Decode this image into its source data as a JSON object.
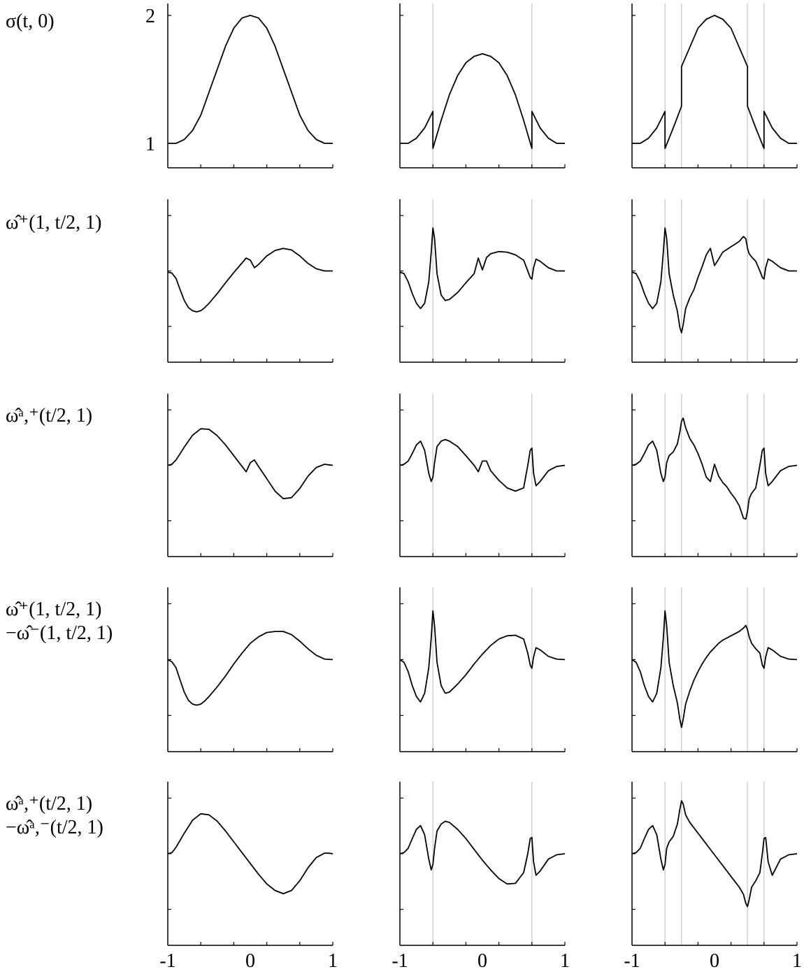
{
  "rows": [
    {
      "label_lines": [
        "σ(t, 0)"
      ]
    },
    {
      "label_lines": [
        "ω̂⁺(1, t/2, 1)"
      ]
    },
    {
      "label_lines": [
        "ω̂ᵃ,⁺(t/2, 1)"
      ]
    },
    {
      "label_lines": [
        "ω̂⁺(1, t/2, 1)",
        "−ω̂⁻(1, t/2, 1)"
      ]
    },
    {
      "label_lines": [
        "ω̂ᵃ,⁺(t/2, 1)",
        "−ω̂ᵃ,⁻(t/2, 1)"
      ]
    }
  ],
  "chart_data": {
    "type": "line",
    "layout": "grid",
    "grid_rows": 5,
    "grid_cols": 3,
    "xlim": [
      -1,
      1
    ],
    "x_tick_labels": [
      "-1",
      "0",
      "1"
    ],
    "row0_y_tick_labels": [
      "2",
      "1"
    ],
    "row0_ylim": [
      0.8,
      2.1
    ],
    "line_color": "#000000",
    "divider_color": "#d0d0d0",
    "columns": [
      {
        "vertical_lines_x": []
      },
      {
        "vertical_lines_x": [
          -0.6,
          0.6
        ]
      },
      {
        "vertical_lines_x": [
          -0.6,
          -0.4,
          0.4,
          0.6
        ]
      }
    ],
    "panels": [
      [
        {
          "x": [
            -1,
            -0.9,
            -0.8,
            -0.7,
            -0.6,
            -0.5,
            -0.4,
            -0.3,
            -0.2,
            -0.1,
            0,
            0.1,
            0.2,
            0.3,
            0.4,
            0.5,
            0.6,
            0.7,
            0.8,
            0.9,
            1
          ],
          "y": [
            1,
            1,
            1.03,
            1.1,
            1.22,
            1.4,
            1.58,
            1.76,
            1.9,
            1.98,
            2,
            1.98,
            1.9,
            1.76,
            1.58,
            1.4,
            1.22,
            1.1,
            1.03,
            1,
            1
          ]
        },
        {
          "x": [
            -1,
            -0.9,
            -0.8,
            -0.7,
            -0.6,
            -0.6,
            -0.5,
            -0.4,
            -0.3,
            -0.2,
            -0.1,
            0,
            0.1,
            0.2,
            0.3,
            0.4,
            0.5,
            0.6,
            0.6,
            0.7,
            0.8,
            0.9,
            1
          ],
          "y": [
            1,
            1,
            1.04,
            1.12,
            1.25,
            0.96,
            1.18,
            1.38,
            1.53,
            1.63,
            1.68,
            1.7,
            1.68,
            1.63,
            1.53,
            1.38,
            1.18,
            0.96,
            1.25,
            1.12,
            1.04,
            1,
            1
          ]
        },
        {
          "x": [
            -1,
            -0.9,
            -0.8,
            -0.7,
            -0.6,
            -0.6,
            -0.5,
            -0.4,
            -0.4,
            -0.3,
            -0.2,
            -0.1,
            0,
            0.1,
            0.2,
            0.3,
            0.4,
            0.4,
            0.5,
            0.6,
            0.6,
            0.7,
            0.8,
            0.9,
            1
          ],
          "y": [
            1,
            1,
            1.04,
            1.12,
            1.25,
            0.96,
            1.12,
            1.29,
            1.6,
            1.75,
            1.9,
            1.97,
            2,
            1.97,
            1.9,
            1.75,
            1.6,
            1.29,
            1.12,
            0.96,
            1.25,
            1.12,
            1.04,
            1,
            1
          ]
        }
      ],
      [
        {
          "x": [
            -1,
            -0.95,
            -0.9,
            -0.85,
            -0.8,
            -0.75,
            -0.7,
            -0.65,
            -0.6,
            -0.55,
            -0.5,
            -0.4,
            -0.3,
            -0.2,
            -0.1,
            -0.05,
            0,
            0.05,
            0.1,
            0.2,
            0.3,
            0.4,
            0.5,
            0.6,
            0.7,
            0.8,
            0.9,
            1
          ],
          "y": [
            -0.02,
            -0.04,
            -0.14,
            -0.35,
            -0.55,
            -0.68,
            -0.74,
            -0.76,
            -0.74,
            -0.68,
            -0.6,
            -0.42,
            -0.22,
            -0.03,
            0.15,
            0.24,
            0.2,
            0.06,
            0.12,
            0.28,
            0.38,
            0.42,
            0.39,
            0.28,
            0.14,
            0.04,
            0,
            0
          ]
        },
        {
          "x": [
            -1,
            -0.95,
            -0.9,
            -0.85,
            -0.8,
            -0.75,
            -0.7,
            -0.65,
            -0.62,
            -0.6,
            -0.58,
            -0.55,
            -0.5,
            -0.45,
            -0.4,
            -0.3,
            -0.2,
            -0.1,
            -0.05,
            0,
            0.05,
            0.1,
            0.2,
            0.3,
            0.4,
            0.5,
            0.55,
            0.58,
            0.6,
            0.62,
            0.65,
            0.7,
            0.8,
            0.9,
            1
          ],
          "y": [
            -0.02,
            -0.05,
            -0.2,
            -0.42,
            -0.6,
            -0.7,
            -0.6,
            -0.2,
            0.35,
            0.8,
            0.6,
            -0.05,
            -0.45,
            -0.55,
            -0.53,
            -0.4,
            -0.22,
            -0.05,
            0.24,
            0.02,
            0.25,
            0.32,
            0.36,
            0.35,
            0.3,
            0.2,
            0.0,
            -0.12,
            -0.15,
            0.06,
            0.22,
            0.18,
            0.06,
            0,
            0
          ]
        },
        {
          "x": [
            -1,
            -0.95,
            -0.9,
            -0.85,
            -0.8,
            -0.75,
            -0.7,
            -0.65,
            -0.62,
            -0.6,
            -0.58,
            -0.55,
            -0.5,
            -0.45,
            -0.42,
            -0.4,
            -0.38,
            -0.35,
            -0.3,
            -0.25,
            -0.2,
            -0.15,
            -0.1,
            -0.05,
            0,
            0.05,
            0.1,
            0.15,
            0.2,
            0.25,
            0.3,
            0.35,
            0.38,
            0.4,
            0.42,
            0.45,
            0.5,
            0.55,
            0.58,
            0.6,
            0.62,
            0.65,
            0.7,
            0.8,
            0.9,
            1
          ],
          "y": [
            -0.02,
            -0.05,
            -0.2,
            -0.42,
            -0.6,
            -0.7,
            -0.6,
            -0.2,
            0.35,
            0.8,
            0.6,
            -0.05,
            -0.45,
            -0.75,
            -1.05,
            -1.15,
            -1.0,
            -0.7,
            -0.5,
            -0.35,
            -0.12,
            0.08,
            0.3,
            0.42,
            0.1,
            0.22,
            0.35,
            0.4,
            0.45,
            0.5,
            0.55,
            0.64,
            0.6,
            0.42,
            0.32,
            0.26,
            0.18,
            0.0,
            -0.12,
            -0.15,
            0.06,
            0.22,
            0.18,
            0.06,
            0,
            0
          ]
        }
      ],
      [
        {
          "x": [
            -1,
            -0.95,
            -0.9,
            -0.8,
            -0.7,
            -0.6,
            -0.5,
            -0.4,
            -0.3,
            -0.2,
            -0.1,
            -0.05,
            0,
            0.05,
            0.1,
            0.2,
            0.3,
            0.4,
            0.5,
            0.6,
            0.7,
            0.8,
            0.9,
            0.95,
            1
          ],
          "y": [
            0,
            0.02,
            0.1,
            0.34,
            0.56,
            0.68,
            0.67,
            0.55,
            0.38,
            0.18,
            -0.02,
            -0.12,
            0.05,
            0.1,
            -0.02,
            -0.25,
            -0.48,
            -0.62,
            -0.6,
            -0.43,
            -0.2,
            -0.04,
            0.02,
            0.01,
            0
          ]
        },
        {
          "x": [
            -1,
            -0.95,
            -0.9,
            -0.85,
            -0.8,
            -0.75,
            -0.7,
            -0.65,
            -0.62,
            -0.6,
            -0.58,
            -0.55,
            -0.5,
            -0.45,
            -0.4,
            -0.3,
            -0.2,
            -0.1,
            -0.05,
            0,
            0.05,
            0.1,
            0.2,
            0.3,
            0.4,
            0.5,
            0.55,
            0.58,
            0.6,
            0.62,
            0.65,
            0.7,
            0.8,
            0.9,
            1
          ],
          "y": [
            0,
            0.02,
            0.08,
            0.22,
            0.38,
            0.45,
            0.28,
            -0.15,
            -0.3,
            -0.22,
            0.05,
            0.35,
            0.45,
            0.48,
            0.45,
            0.35,
            0.18,
            0.0,
            -0.12,
            0.08,
            0.08,
            -0.1,
            -0.28,
            -0.42,
            -0.48,
            -0.42,
            0.0,
            0.28,
            0.32,
            -0.15,
            -0.38,
            -0.3,
            -0.1,
            -0.02,
            0
          ]
        },
        {
          "x": [
            -1,
            -0.95,
            -0.9,
            -0.85,
            -0.8,
            -0.75,
            -0.7,
            -0.65,
            -0.62,
            -0.6,
            -0.58,
            -0.55,
            -0.5,
            -0.45,
            -0.42,
            -0.4,
            -0.38,
            -0.35,
            -0.3,
            -0.25,
            -0.2,
            -0.15,
            -0.1,
            -0.05,
            0,
            0.05,
            0.1,
            0.15,
            0.2,
            0.25,
            0.3,
            0.35,
            0.38,
            0.4,
            0.42,
            0.45,
            0.5,
            0.55,
            0.58,
            0.6,
            0.62,
            0.65,
            0.7,
            0.8,
            0.9,
            1
          ],
          "y": [
            0,
            0.02,
            0.08,
            0.22,
            0.38,
            0.45,
            0.28,
            -0.15,
            -0.3,
            -0.22,
            0.05,
            0.18,
            0.25,
            0.4,
            0.62,
            0.82,
            0.88,
            0.7,
            0.5,
            0.38,
            0.22,
            0.02,
            -0.22,
            -0.3,
            0.02,
            -0.2,
            -0.32,
            -0.4,
            -0.52,
            -0.62,
            -0.75,
            -0.98,
            -1.0,
            -0.85,
            -0.62,
            -0.52,
            -0.42,
            0.0,
            0.28,
            0.32,
            -0.15,
            -0.38,
            -0.3,
            -0.1,
            -0.02,
            0
          ]
        }
      ],
      [
        {
          "x": [
            -1,
            -0.95,
            -0.9,
            -0.85,
            -0.8,
            -0.75,
            -0.7,
            -0.65,
            -0.6,
            -0.55,
            -0.5,
            -0.4,
            -0.3,
            -0.2,
            -0.1,
            0,
            0.1,
            0.2,
            0.3,
            0.4,
            0.5,
            0.6,
            0.7,
            0.8,
            0.9,
            1
          ],
          "y": [
            0,
            -0.04,
            -0.15,
            -0.38,
            -0.6,
            -0.75,
            -0.82,
            -0.84,
            -0.82,
            -0.76,
            -0.68,
            -0.5,
            -0.3,
            -0.08,
            0.12,
            0.3,
            0.42,
            0.5,
            0.52,
            0.52,
            0.46,
            0.34,
            0.2,
            0.08,
            0.01,
            0
          ]
        },
        {
          "x": [
            -1,
            -0.95,
            -0.9,
            -0.85,
            -0.8,
            -0.75,
            -0.7,
            -0.65,
            -0.62,
            -0.6,
            -0.58,
            -0.55,
            -0.5,
            -0.45,
            -0.4,
            -0.3,
            -0.2,
            -0.1,
            0,
            0.1,
            0.2,
            0.3,
            0.4,
            0.5,
            0.55,
            0.58,
            0.6,
            0.62,
            0.65,
            0.7,
            0.8,
            0.9,
            1
          ],
          "y": [
            0,
            -0.05,
            -0.22,
            -0.48,
            -0.68,
            -0.78,
            -0.62,
            -0.15,
            0.4,
            0.9,
            0.62,
            -0.05,
            -0.48,
            -0.62,
            -0.6,
            -0.45,
            -0.28,
            -0.08,
            0.1,
            0.26,
            0.38,
            0.44,
            0.45,
            0.38,
            0.12,
            -0.1,
            -0.16,
            0.05,
            0.22,
            0.18,
            0.06,
            0.01,
            0
          ]
        },
        {
          "x": [
            -1,
            -0.95,
            -0.9,
            -0.85,
            -0.8,
            -0.75,
            -0.7,
            -0.65,
            -0.62,
            -0.6,
            -0.58,
            -0.55,
            -0.5,
            -0.45,
            -0.42,
            -0.4,
            -0.38,
            -0.35,
            -0.3,
            -0.25,
            -0.2,
            -0.15,
            -0.1,
            -0.05,
            0,
            0.05,
            0.1,
            0.2,
            0.3,
            0.35,
            0.38,
            0.4,
            0.42,
            0.45,
            0.5,
            0.55,
            0.58,
            0.6,
            0.62,
            0.65,
            0.7,
            0.8,
            0.9,
            1
          ],
          "y": [
            0,
            -0.05,
            -0.22,
            -0.48,
            -0.68,
            -0.78,
            -0.62,
            -0.15,
            0.4,
            0.9,
            0.62,
            -0.05,
            -0.48,
            -0.8,
            -1.1,
            -1.25,
            -1.1,
            -0.82,
            -0.58,
            -0.38,
            -0.22,
            -0.08,
            0.04,
            0.14,
            0.22,
            0.3,
            0.36,
            0.44,
            0.52,
            0.58,
            0.63,
            0.55,
            0.42,
            0.3,
            0.2,
            0.12,
            -0.1,
            -0.16,
            0.05,
            0.22,
            0.18,
            0.06,
            0.01,
            0
          ]
        }
      ],
      [
        {
          "x": [
            -1,
            -0.95,
            -0.9,
            -0.8,
            -0.7,
            -0.6,
            -0.5,
            -0.4,
            -0.3,
            -0.2,
            -0.1,
            0,
            0.1,
            0.2,
            0.3,
            0.4,
            0.5,
            0.6,
            0.7,
            0.8,
            0.9,
            0.95,
            1
          ],
          "y": [
            0,
            0.02,
            0.12,
            0.38,
            0.62,
            0.74,
            0.72,
            0.6,
            0.42,
            0.22,
            0.02,
            -0.18,
            -0.38,
            -0.56,
            -0.68,
            -0.74,
            -0.68,
            -0.5,
            -0.26,
            -0.07,
            0.01,
            0.01,
            0
          ]
        },
        {
          "x": [
            -1,
            -0.95,
            -0.9,
            -0.85,
            -0.8,
            -0.75,
            -0.7,
            -0.65,
            -0.62,
            -0.6,
            -0.58,
            -0.55,
            -0.5,
            -0.45,
            -0.4,
            -0.3,
            -0.2,
            -0.1,
            0,
            0.1,
            0.2,
            0.3,
            0.4,
            0.5,
            0.55,
            0.58,
            0.6,
            0.62,
            0.65,
            0.7,
            0.8,
            0.9,
            1
          ],
          "y": [
            0,
            0.02,
            0.1,
            0.28,
            0.45,
            0.52,
            0.35,
            -0.1,
            -0.3,
            -0.2,
            0.1,
            0.42,
            0.55,
            0.6,
            0.58,
            0.45,
            0.28,
            0.08,
            -0.12,
            -0.3,
            -0.46,
            -0.56,
            -0.55,
            -0.35,
            0.0,
            0.28,
            0.3,
            -0.15,
            -0.4,
            -0.32,
            -0.1,
            -0.02,
            0
          ]
        },
        {
          "x": [
            -1,
            -0.95,
            -0.9,
            -0.85,
            -0.8,
            -0.75,
            -0.7,
            -0.65,
            -0.62,
            -0.6,
            -0.58,
            -0.55,
            -0.5,
            -0.45,
            -0.42,
            -0.4,
            -0.38,
            -0.35,
            -0.3,
            -0.2,
            -0.1,
            0,
            0.1,
            0.2,
            0.3,
            0.35,
            0.38,
            0.4,
            0.42,
            0.45,
            0.5,
            0.55,
            0.58,
            0.6,
            0.62,
            0.65,
            0.7,
            0.8,
            0.9,
            1
          ],
          "y": [
            0,
            0.02,
            0.1,
            0.28,
            0.45,
            0.52,
            0.35,
            -0.1,
            -0.3,
            -0.2,
            0.1,
            0.22,
            0.32,
            0.55,
            0.82,
            0.98,
            0.92,
            0.72,
            0.58,
            0.38,
            0.18,
            -0.02,
            -0.22,
            -0.42,
            -0.62,
            -0.75,
            -0.92,
            -0.98,
            -0.85,
            -0.62,
            -0.5,
            -0.35,
            0.0,
            0.28,
            0.3,
            -0.15,
            -0.4,
            -0.1,
            -0.02,
            0
          ]
        }
      ]
    ]
  }
}
